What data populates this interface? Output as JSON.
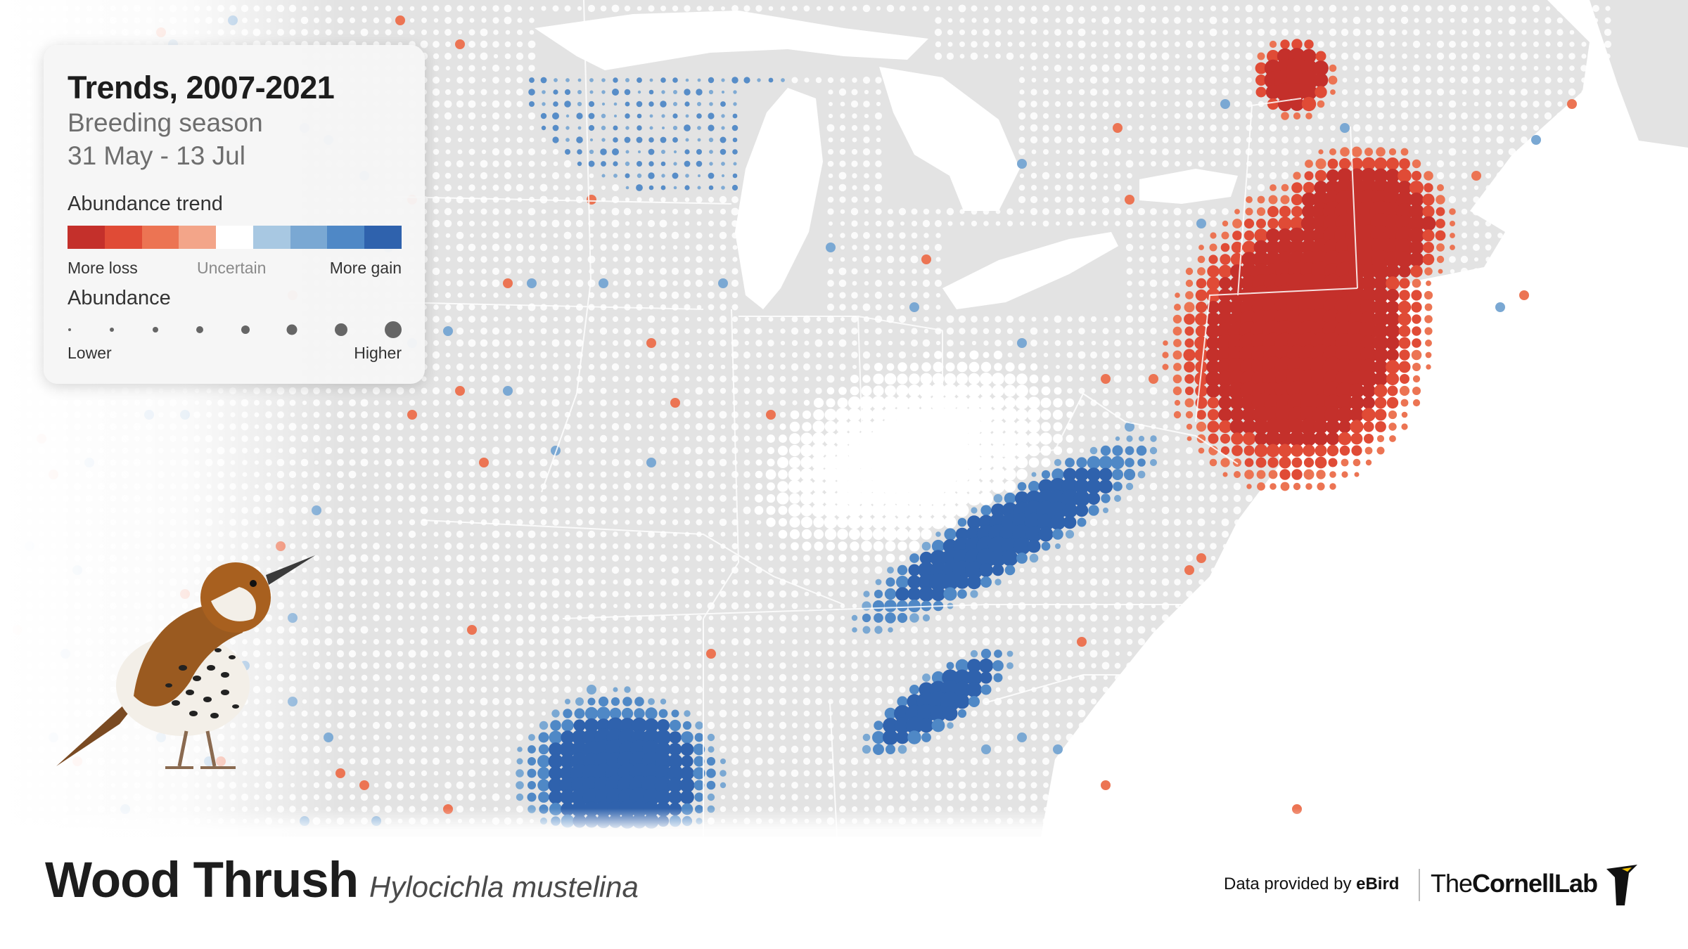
{
  "legend": {
    "title": "Trends, 2007-2021",
    "season": "Breeding season",
    "dates": "31 May - 13 Jul",
    "trend_heading": "Abundance trend",
    "trend_colors": [
      "#c4302b",
      "#e04b36",
      "#ec7453",
      "#f3a589",
      "#ffffff",
      "#a8c8e2",
      "#7aa8d3",
      "#4f88c6",
      "#2f62ad"
    ],
    "trend_labels": {
      "loss": "More loss",
      "uncertain": "Uncertain",
      "gain": "More gain"
    },
    "abundance_heading": "Abundance",
    "abundance_labels": {
      "lower": "Lower",
      "higher": "Higher"
    }
  },
  "species": {
    "common_name": "Wood Thrush",
    "scientific_name": "Hylocichla mustelina"
  },
  "credit": {
    "data_provided": "Data provided by ",
    "ebird": "eBird",
    "lab_prefix": "The",
    "lab_name": "CornellLab"
  },
  "map_colors": {
    "land": "#e3e3e3",
    "water": "#ffffff",
    "dot_neutral": "#ffffff",
    "loss": "#e0452f",
    "gain": "#2f6bb5"
  },
  "icons": [
    "bird-illustration-icon",
    "cornell-lab-logo-icon"
  ]
}
